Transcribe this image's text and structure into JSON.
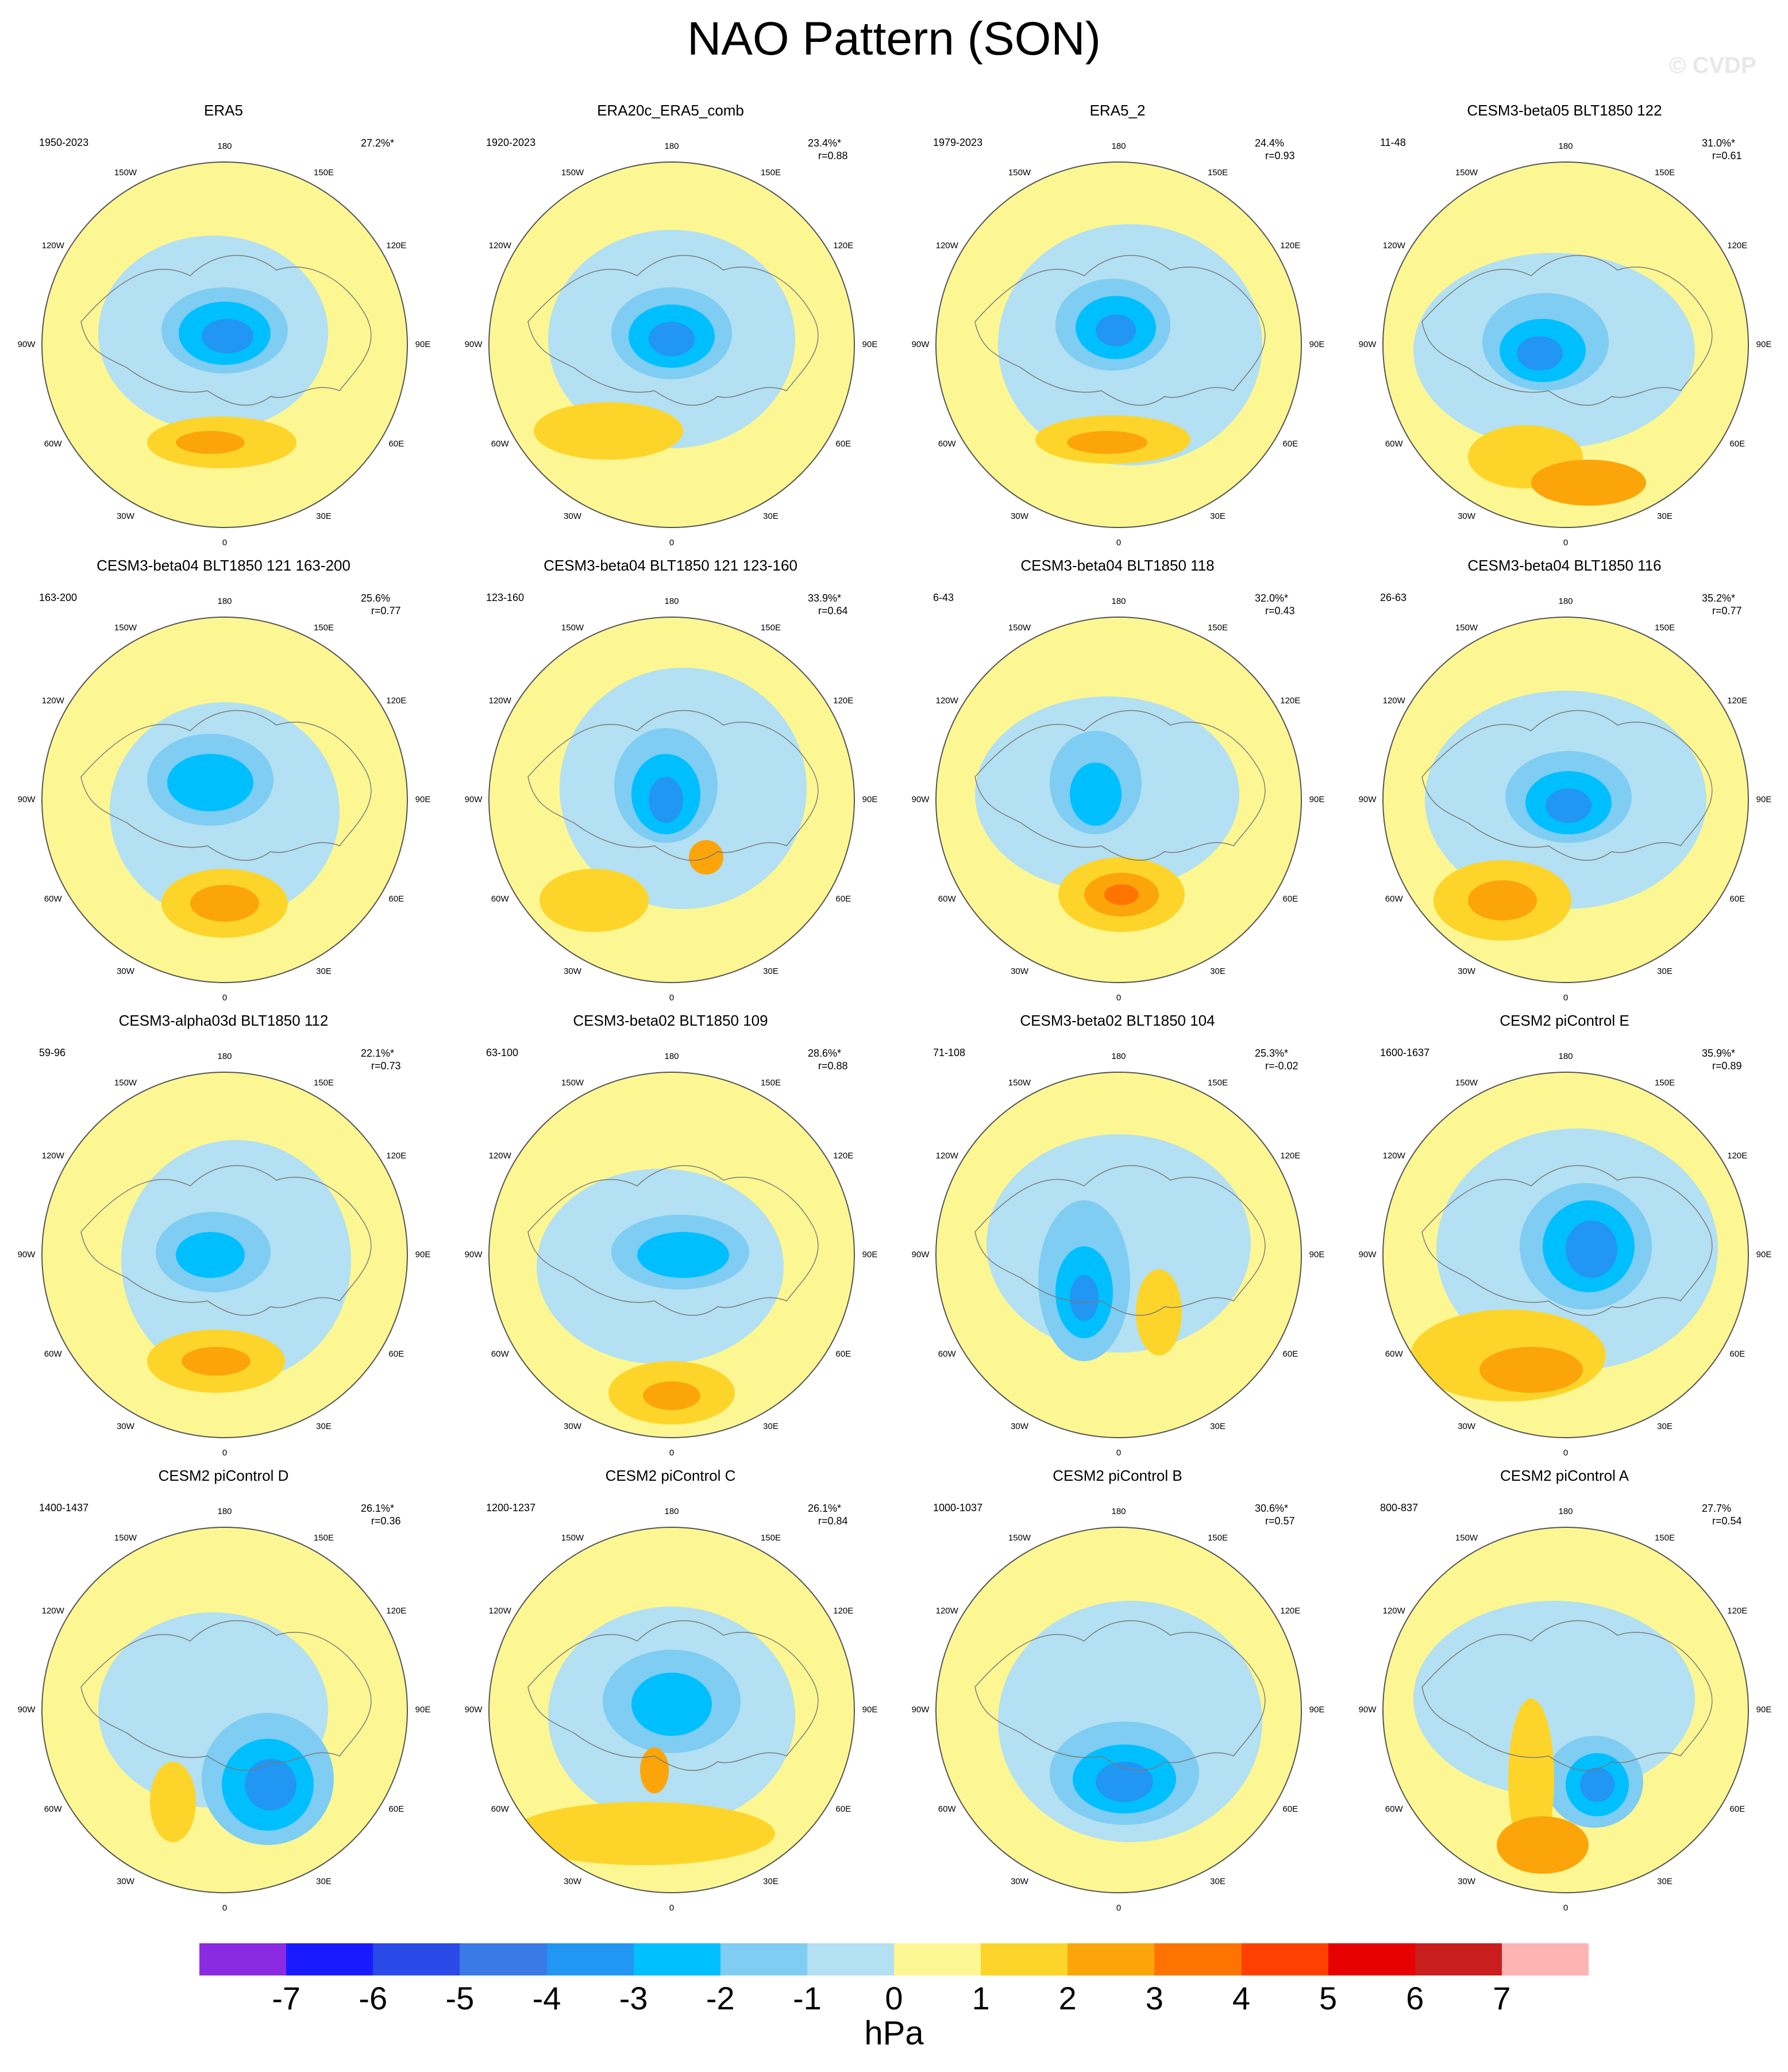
{
  "title": "NAO Pattern (SON)",
  "copyright": "© CVDP",
  "units": "hPa",
  "labels": {
    "n": "180",
    "s": "0",
    "e": "90E",
    "w": "90W",
    "ne1": "150E",
    "ne2": "120E",
    "nw1": "150W",
    "nw2": "120W",
    "se1": "30E",
    "se2": "60E",
    "sw1": "30W",
    "sw2": "60W"
  },
  "colorbar": {
    "colors": [
      "#8a2be2",
      "#1a1aff",
      "#2a4ae8",
      "#3a7ae6",
      "#2196f3",
      "#00bfff",
      "#7fcdf2",
      "#b3e0f2",
      "#fcf793",
      "#fdd52a",
      "#fca50a",
      "#fd7500",
      "#ff4000",
      "#e60000",
      "#c81e1e",
      "#ffb3b3"
    ],
    "ticks": [
      "-7",
      "-6",
      "-5",
      "-4",
      "-3",
      "-2",
      "-1",
      "0",
      "1",
      "2",
      "3",
      "4",
      "5",
      "6",
      "7"
    ]
  },
  "panels": [
    {
      "title": "ERA5",
      "years": "1950-2023",
      "pct": "27.2%*",
      "r": ""
    },
    {
      "title": "ERA20c_ERA5_comb",
      "years": "1920-2023",
      "pct": "23.4%*",
      "r": "r=0.88"
    },
    {
      "title": "ERA5_2",
      "years": "1979-2023",
      "pct": "24.4%",
      "r": "r=0.93"
    },
    {
      "title": "CESM3-beta05 BLT1850 122",
      "years": "11-48",
      "pct": "31.0%*",
      "r": "r=0.61"
    },
    {
      "title": "CESM3-beta04 BLT1850 121 163-200",
      "years": "163-200",
      "pct": "25.6%",
      "r": "r=0.77"
    },
    {
      "title": "CESM3-beta04 BLT1850 121 123-160",
      "years": "123-160",
      "pct": "33.9%*",
      "r": "r=0.64"
    },
    {
      "title": "CESM3-beta04 BLT1850 118",
      "years": "6-43",
      "pct": "32.0%*",
      "r": "r=0.43"
    },
    {
      "title": "CESM3-beta04 BLT1850 116",
      "years": "26-63",
      "pct": "35.2%*",
      "r": "r=0.77"
    },
    {
      "title": "CESM3-alpha03d BLT1850 112",
      "years": "59-96",
      "pct": "22.1%*",
      "r": "r=0.73"
    },
    {
      "title": "CESM3-beta02 BLT1850 109",
      "years": "63-100",
      "pct": "28.6%*",
      "r": "r=0.88"
    },
    {
      "title": "CESM3-beta02 BLT1850 104",
      "years": "71-108",
      "pct": "25.3%*",
      "r": "r=-0.02"
    },
    {
      "title": "CESM2 piControl E",
      "years": "1600-1637",
      "pct": "35.9%*",
      "r": "r=0.89"
    },
    {
      "title": "CESM2 piControl D",
      "years": "1400-1437",
      "pct": "26.1%*",
      "r": "r=0.36"
    },
    {
      "title": "CESM2 piControl C",
      "years": "1200-1237",
      "pct": "26.1%*",
      "r": "r=0.84"
    },
    {
      "title": "CESM2 piControl B",
      "years": "1000-1037",
      "pct": "30.6%*",
      "r": "r=0.57"
    },
    {
      "title": "CESM2 piControl A",
      "years": "800-837",
      "pct": "27.7%",
      "r": "r=0.54"
    }
  ]
}
